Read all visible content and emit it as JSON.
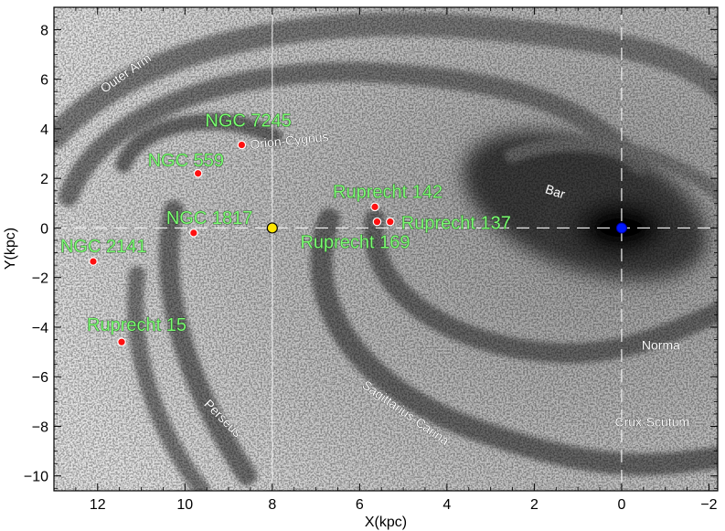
{
  "chart_data": {
    "type": "scatter",
    "title": "",
    "xlabel": "X(kpc)",
    "ylabel": "Y(kpc)",
    "xlim": [
      13,
      -2.2
    ],
    "ylim": [
      -10.6,
      8.9
    ],
    "x_ticks": [
      12,
      10,
      8,
      6,
      4,
      2,
      0,
      -2
    ],
    "y_ticks": [
      8,
      6,
      4,
      2,
      0,
      -2,
      -4,
      -6,
      -8,
      -10
    ],
    "x_tick_labels": [
      "12",
      "10",
      "8",
      "6",
      "4",
      "2",
      "0",
      "−2"
    ],
    "y_tick_labels": [
      "8",
      "6",
      "4",
      "2",
      "0",
      "−2",
      "−4",
      "−6",
      "−8",
      "−10"
    ],
    "sun": {
      "x": 8.0,
      "y": 0.0,
      "color": "#FFE600"
    },
    "galactic_center": {
      "x": 0.0,
      "y": 0.0,
      "color": "#0018FF"
    },
    "clusters": [
      {
        "name": "NGC 7245",
        "x": 8.7,
        "y": 3.35
      },
      {
        "name": "NGC 559",
        "x": 9.7,
        "y": 2.2
      },
      {
        "name": "NGC 1817",
        "x": 9.8,
        "y": -0.2
      },
      {
        "name": "NGC 2141",
        "x": 12.1,
        "y": -1.35
      },
      {
        "name": "Ruprecht 15",
        "x": 11.45,
        "y": -4.6
      },
      {
        "name": "Ruprecht 142",
        "x": 5.65,
        "y": 0.85
      },
      {
        "name": "Ruprecht 169",
        "x": 5.6,
        "y": 0.25
      },
      {
        "name": "Ruprecht 137",
        "x": 5.3,
        "y": 0.25
      }
    ],
    "cluster_color": "#FF1010",
    "label_color": "#7CFC72",
    "arm_labels": [
      {
        "text": "Outer Arm",
        "x": 11.3,
        "y": 6.1,
        "angle": -35
      },
      {
        "text": "Orion-Cygnus",
        "x": 7.6,
        "y": 3.35,
        "angle": -6
      },
      {
        "text": "Bar",
        "x": 1.55,
        "y": 1.3,
        "angle": 18
      },
      {
        "text": "Norma",
        "x": -0.9,
        "y": -4.9,
        "angle": 0
      },
      {
        "text": "Perseus",
        "x": 9.2,
        "y": -7.8,
        "angle": 45
      },
      {
        "text": "Sagittarius-Carina",
        "x": 5.0,
        "y": -7.6,
        "angle": 35
      },
      {
        "text": "Crux-Scutum",
        "x": -0.7,
        "y": -8.0,
        "angle": 0
      }
    ],
    "grid": false
  }
}
